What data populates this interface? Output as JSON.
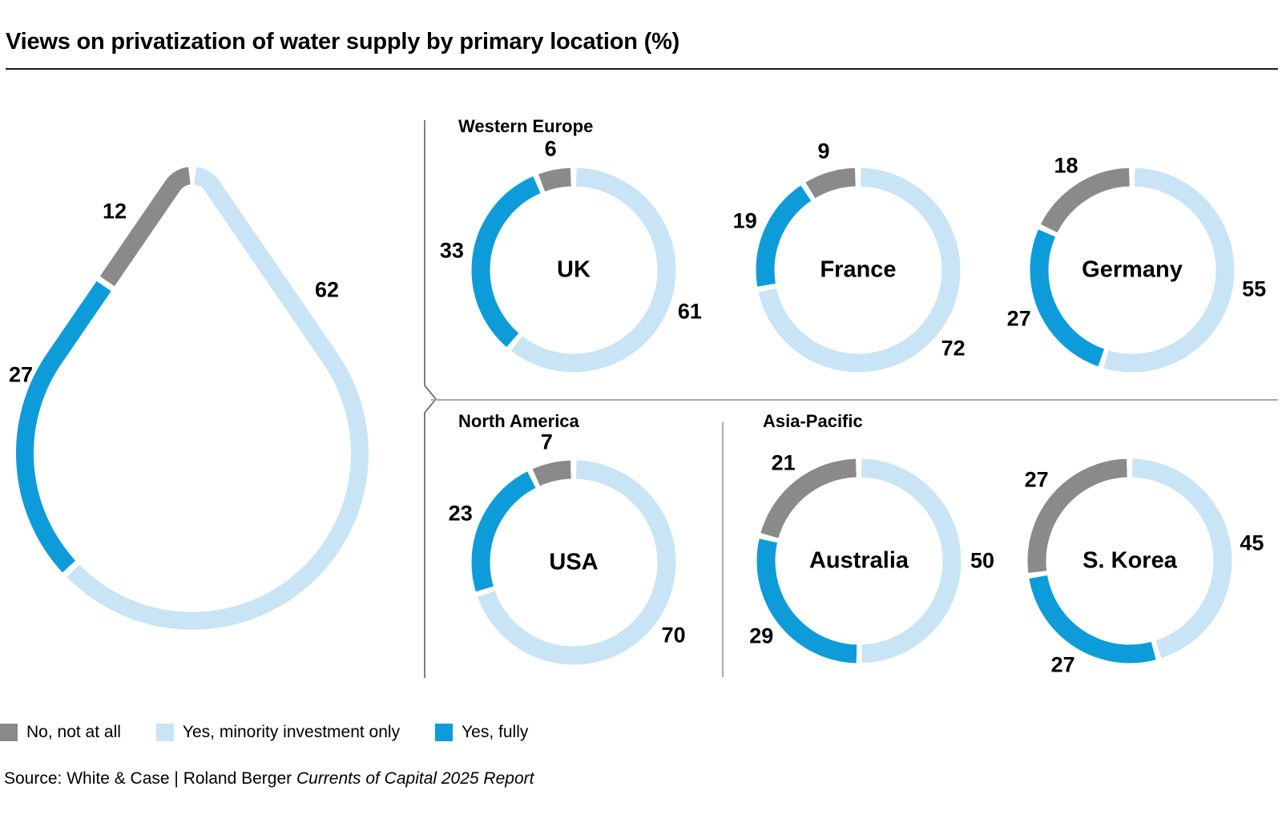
{
  "title": "Views on privatization of water supply by primary location (%)",
  "legend": {
    "items": [
      {
        "key": "no",
        "label": "No, not at all"
      },
      {
        "key": "minority",
        "label": "Yes, minority investment only"
      },
      {
        "key": "fully",
        "label": "Yes, fully"
      }
    ]
  },
  "source": {
    "prefix": "Source: White & Case | Roland Berger ",
    "italic": "Currents of Capital 2025 Report"
  },
  "chart_data": {
    "type": "pie",
    "variant": "donut-ring-grid-with-droplet-total",
    "units": "percent",
    "title": "Views on privatization of water supply by primary location (%)",
    "segment_order_clockwise_from_top": [
      "minority",
      "fully",
      "no"
    ],
    "segment_labels": {
      "no": "No, not at all",
      "minority": "Yes, minority investment only",
      "fully": "Yes, fully"
    },
    "colors": {
      "no": "#8a8a8a",
      "minority": "#c9e4f5",
      "fully": "#0d9cd9"
    },
    "overall_droplet": {
      "minority": 62,
      "fully": 27,
      "no": 12
    },
    "regions": [
      {
        "name": "Western Europe",
        "countries": [
          {
            "name": "UK",
            "minority": 61,
            "fully": 33,
            "no": 6
          },
          {
            "name": "France",
            "minority": 72,
            "fully": 19,
            "no": 9
          },
          {
            "name": "Germany",
            "minority": 55,
            "fully": 27,
            "no": 18
          }
        ]
      },
      {
        "name": "North America",
        "countries": [
          {
            "name": "USA",
            "minority": 70,
            "fully": 23,
            "no": 7
          }
        ]
      },
      {
        "name": "Asia-Pacific",
        "countries": [
          {
            "name": "Australia",
            "minority": 50,
            "fully": 29,
            "no": 21
          },
          {
            "name": "S. Korea",
            "minority": 45,
            "fully": 27,
            "no": 27
          }
        ]
      }
    ]
  }
}
